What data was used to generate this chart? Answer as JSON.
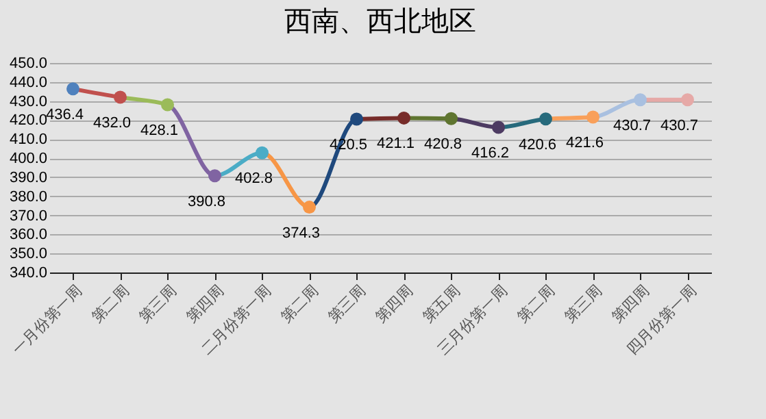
{
  "chart_data": {
    "type": "line",
    "title": "西南、西北地区",
    "categories": [
      "一月份第一周",
      "第二周",
      "第三周",
      "第四周",
      "二月份第一周",
      "第二周",
      "第三周",
      "第四周",
      "第五周",
      "三月份第一周",
      "第二周",
      "第三周",
      "第四周",
      "四月份第一周"
    ],
    "series": [
      {
        "values": [
          436.4,
          432.0,
          428.1,
          390.8,
          402.8,
          374.3,
          420.5,
          421.1,
          420.8,
          416.2,
          420.6,
          421.6,
          430.7,
          430.7
        ],
        "colors": [
          "#4f81bd",
          "#c0504d",
          "#9bbb59",
          "#8064a2",
          "#4bacc6",
          "#f79646",
          "#1f497d",
          "#772c2a",
          "#5f7530",
          "#4d3b62",
          "#276a7c",
          "#f9a05a",
          "#a9c0e0",
          "#e6a9a7"
        ],
        "value_labels": [
          "436.4",
          "432.0",
          "428.1",
          "390.8",
          "402.8",
          "374.3",
          "420.5",
          "421.1",
          "420.8",
          "416.2",
          "420.6",
          "421.6",
          "430.7",
          "430.7"
        ]
      }
    ],
    "ylim": [
      340,
      450
    ],
    "yticks": [
      {
        "value": 340,
        "label": "340.0"
      },
      {
        "value": 350,
        "label": "350.0"
      },
      {
        "value": 360,
        "label": "360.0"
      },
      {
        "value": 370,
        "label": "370.0"
      },
      {
        "value": 380,
        "label": "380.0"
      },
      {
        "value": 390,
        "label": "390.0"
      },
      {
        "value": 400,
        "label": "400.0"
      },
      {
        "value": 410,
        "label": "410.0"
      },
      {
        "value": 420,
        "label": "420.0"
      },
      {
        "value": 430,
        "label": "430.0"
      },
      {
        "value": 440,
        "label": "440.0"
      },
      {
        "value": 450,
        "label": "450.0"
      }
    ],
    "grid": "y",
    "marker": "circle",
    "line_style": "solid"
  }
}
